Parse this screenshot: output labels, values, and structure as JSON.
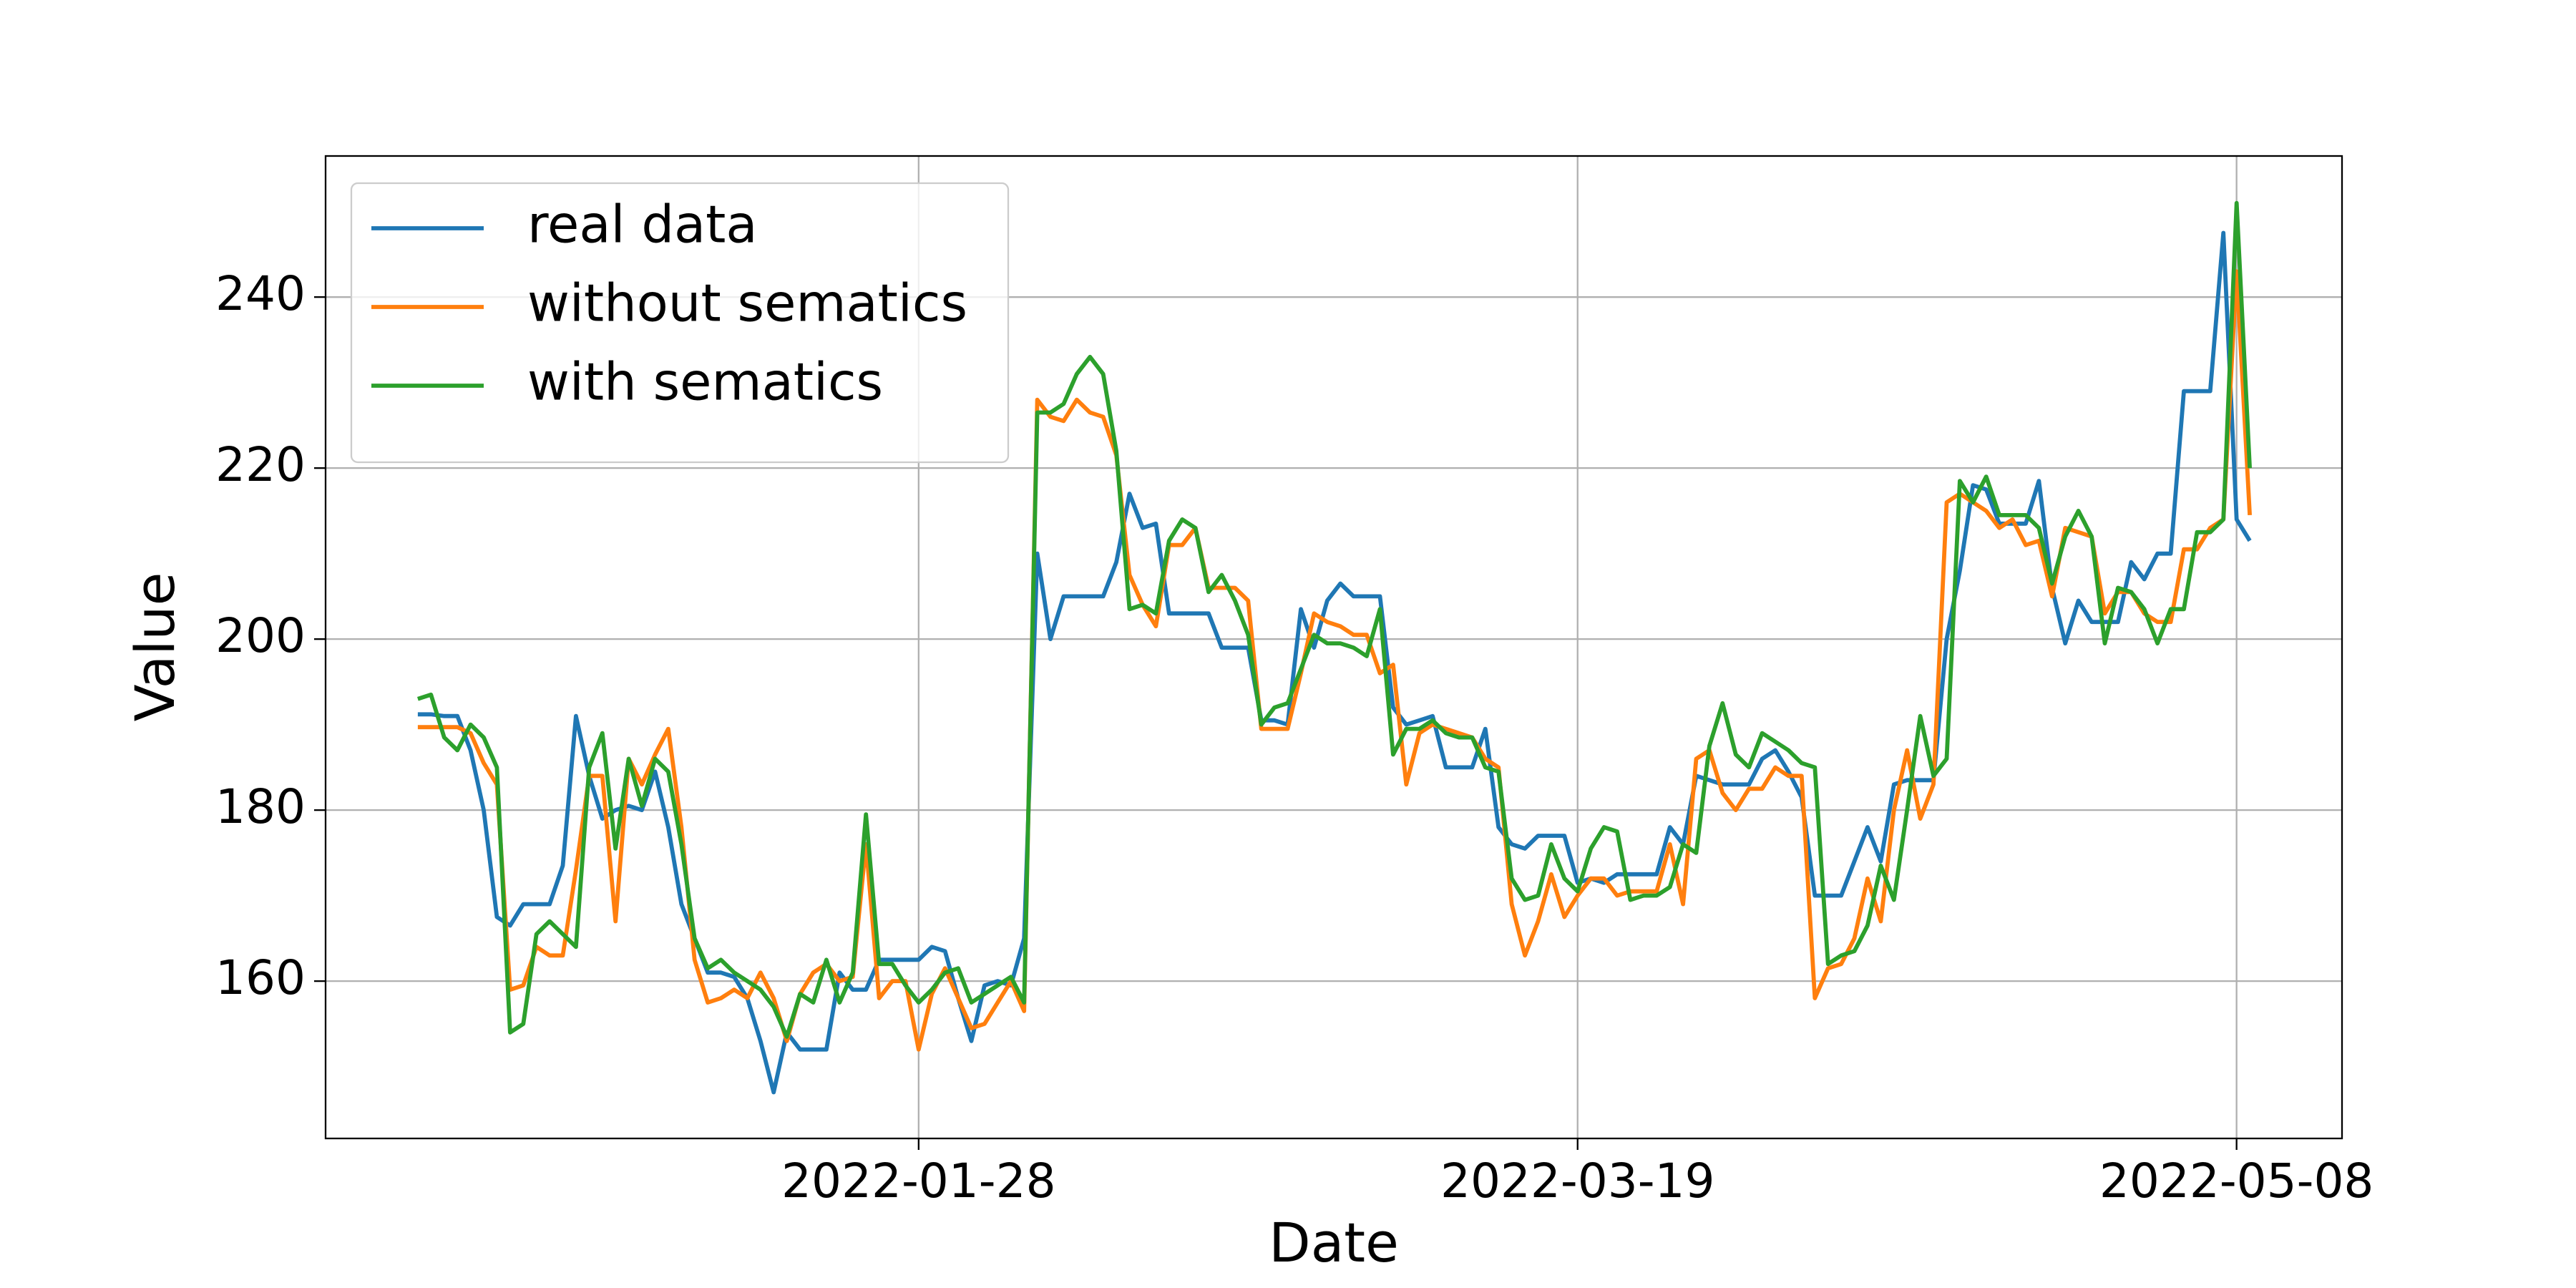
{
  "chart_data": {
    "type": "line",
    "xlabel": "Date",
    "ylabel": "Value",
    "x": [
      "2021-12-21",
      "2021-12-22",
      "2021-12-23",
      "2021-12-24",
      "2021-12-25",
      "2021-12-26",
      "2021-12-27",
      "2021-12-28",
      "2021-12-29",
      "2021-12-30",
      "2021-12-31",
      "2022-01-01",
      "2022-01-02",
      "2022-01-03",
      "2022-01-04",
      "2022-01-05",
      "2022-01-06",
      "2022-01-07",
      "2022-01-08",
      "2022-01-09",
      "2022-01-10",
      "2022-01-11",
      "2022-01-12",
      "2022-01-13",
      "2022-01-14",
      "2022-01-15",
      "2022-01-16",
      "2022-01-17",
      "2022-01-18",
      "2022-01-19",
      "2022-01-20",
      "2022-01-21",
      "2022-01-22",
      "2022-01-23",
      "2022-01-24",
      "2022-01-25",
      "2022-01-26",
      "2022-01-27",
      "2022-01-28",
      "2022-01-29",
      "2022-01-30",
      "2022-01-31",
      "2022-02-01",
      "2022-02-02",
      "2022-02-03",
      "2022-02-04",
      "2022-02-05",
      "2022-02-06",
      "2022-02-07",
      "2022-02-08",
      "2022-02-09",
      "2022-02-10",
      "2022-02-11",
      "2022-02-12",
      "2022-02-13",
      "2022-02-14",
      "2022-02-15",
      "2022-02-16",
      "2022-02-17",
      "2022-02-18",
      "2022-02-19",
      "2022-02-20",
      "2022-02-21",
      "2022-02-22",
      "2022-02-23",
      "2022-02-24",
      "2022-02-25",
      "2022-02-26",
      "2022-02-27",
      "2022-02-28",
      "2022-03-01",
      "2022-03-02",
      "2022-03-03",
      "2022-03-04",
      "2022-03-05",
      "2022-03-06",
      "2022-03-07",
      "2022-03-08",
      "2022-03-09",
      "2022-03-10",
      "2022-03-11",
      "2022-03-12",
      "2022-03-13",
      "2022-03-14",
      "2022-03-15",
      "2022-03-16",
      "2022-03-17",
      "2022-03-18",
      "2022-03-19",
      "2022-03-20",
      "2022-03-21",
      "2022-03-22",
      "2022-03-23",
      "2022-03-24",
      "2022-03-25",
      "2022-03-26",
      "2022-03-27",
      "2022-03-28",
      "2022-03-29",
      "2022-03-30",
      "2022-03-31",
      "2022-04-01",
      "2022-04-02",
      "2022-04-03",
      "2022-04-04",
      "2022-04-05",
      "2022-04-06",
      "2022-04-07",
      "2022-04-08",
      "2022-04-09",
      "2022-04-10",
      "2022-04-11",
      "2022-04-12",
      "2022-04-13",
      "2022-04-14",
      "2022-04-15",
      "2022-04-16",
      "2022-04-17",
      "2022-04-18",
      "2022-04-19",
      "2022-04-20",
      "2022-04-21",
      "2022-04-22",
      "2022-04-23",
      "2022-04-24",
      "2022-04-25",
      "2022-04-26",
      "2022-04-27",
      "2022-04-28",
      "2022-04-29",
      "2022-04-30",
      "2022-05-01",
      "2022-05-02",
      "2022-05-03",
      "2022-05-04",
      "2022-05-05",
      "2022-05-06",
      "2022-05-07",
      "2022-05-08",
      "2022-05-09"
    ],
    "series": [
      {
        "name": "real data",
        "color": "#1f77b4",
        "values": [
          191.2,
          191.2,
          191,
          191,
          187,
          180,
          167.5,
          166.5,
          169,
          169,
          169,
          173.5,
          191,
          184,
          179,
          180,
          180.5,
          180,
          184.5,
          178,
          169,
          165,
          161,
          161,
          160.5,
          158,
          153,
          147,
          154,
          152,
          152,
          152,
          161,
          159,
          159,
          162.5,
          162.5,
          162.5,
          162.5,
          164,
          163.5,
          158,
          153,
          159.5,
          160,
          159.5,
          165,
          210,
          200,
          205,
          205,
          205,
          205,
          209,
          217,
          213,
          213.5,
          203,
          203,
          203,
          203,
          199,
          199,
          199,
          190.5,
          190.5,
          190,
          203.5,
          199,
          204.5,
          206.5,
          205,
          205,
          205,
          192,
          190,
          190.5,
          191,
          185,
          185,
          185,
          189.5,
          178,
          176,
          175.5,
          177,
          177,
          177,
          171.5,
          172,
          171.5,
          172.5,
          172.5,
          172.5,
          172.5,
          178,
          176,
          184,
          183.5,
          183,
          183,
          183,
          186,
          187,
          184.5,
          181.5,
          170,
          170,
          170,
          174,
          178,
          174,
          183,
          183.5,
          183.5,
          183.5,
          200,
          208,
          218,
          217.5,
          213.5,
          213.5,
          213.5,
          218.5,
          206,
          199.5,
          204.5,
          202,
          202,
          202,
          209,
          207,
          210,
          210,
          229,
          229,
          229,
          247.5,
          214,
          211.5
        ]
      },
      {
        "name": "without sematics",
        "color": "#ff7f0e",
        "values": [
          189.7,
          189.7,
          189.7,
          189.7,
          189,
          185.5,
          183,
          159,
          159.5,
          164,
          163,
          163,
          173,
          184,
          184,
          167,
          186,
          183,
          186.5,
          189.5,
          178,
          162.5,
          157.5,
          158,
          159,
          158,
          161,
          158,
          153,
          158.5,
          161,
          162,
          160,
          160.5,
          176,
          158,
          160,
          160,
          152,
          158.5,
          161.5,
          158,
          154.5,
          155,
          157.5,
          160,
          156.5,
          228,
          226,
          225.5,
          228,
          226.5,
          226,
          221.5,
          207.5,
          204,
          201.5,
          211,
          211,
          213,
          206,
          206,
          206,
          204.5,
          189.5,
          189.5,
          189.5,
          196,
          203,
          202,
          201.5,
          200.5,
          200.5,
          196,
          197,
          183,
          189,
          190,
          189.5,
          189,
          188.5,
          186,
          185,
          169,
          163,
          167,
          172.5,
          167.5,
          170,
          172,
          172,
          170,
          170.5,
          170.5,
          170.5,
          176,
          169,
          186,
          187,
          182,
          180,
          182.5,
          182.5,
          185,
          184,
          184,
          158,
          161.5,
          162,
          165,
          172,
          167,
          180,
          187,
          179,
          183,
          216,
          217,
          216,
          215,
          213,
          214,
          211,
          211.5,
          205,
          213,
          212.5,
          212,
          203,
          205.5,
          205.5,
          203,
          202,
          202,
          210.5,
          210.5,
          213,
          214,
          243,
          214.5
        ]
      },
      {
        "name": "with sematics",
        "color": "#2ca02c",
        "values": [
          193,
          193.5,
          188.5,
          187,
          190,
          188.5,
          185,
          154,
          155,
          165.5,
          167,
          165.5,
          164,
          185,
          189,
          175.5,
          186,
          180.5,
          186,
          184.5,
          176,
          165,
          161.5,
          162.5,
          161,
          160,
          159,
          157,
          153.5,
          158.5,
          157.5,
          162.5,
          157.5,
          161,
          179.5,
          162,
          162,
          159.5,
          157.5,
          159,
          161,
          161.5,
          157.5,
          158.5,
          159.5,
          160.5,
          157.5,
          226.5,
          226.5,
          227.5,
          231,
          233,
          231,
          222,
          203.5,
          204,
          203,
          211.5,
          214,
          213,
          205.5,
          207.5,
          204.5,
          200.5,
          190,
          192,
          192.5,
          196.5,
          200.5,
          199.5,
          199.5,
          199,
          198,
          203.5,
          186.5,
          189.5,
          189.5,
          190.5,
          189,
          188.5,
          188.5,
          185,
          184.5,
          172,
          169.5,
          170,
          176,
          172,
          170.5,
          175.5,
          178,
          177.5,
          169.5,
          170,
          170,
          171,
          176,
          175,
          187.5,
          192.5,
          186.5,
          185,
          189,
          188,
          187,
          185.5,
          185,
          162,
          163,
          163.5,
          166.5,
          173.5,
          169.5,
          180,
          191,
          184,
          186,
          218.5,
          216,
          219,
          214.5,
          214.5,
          214.5,
          213,
          206.5,
          212,
          215,
          212,
          199.5,
          206,
          205.5,
          203.5,
          199.5,
          203.5,
          203.5,
          212.5,
          212.5,
          214,
          251,
          220
        ]
      }
    ],
    "xlim": [
      "2021-12-14",
      "2022-05-16"
    ],
    "xticks": [
      "2022-01-28",
      "2022-03-19",
      "2022-05-08"
    ],
    "ylim": [
      141.6,
      256.5
    ],
    "yticks": [
      160,
      180,
      200,
      220,
      240
    ],
    "grid": true,
    "legend": "upper left"
  }
}
